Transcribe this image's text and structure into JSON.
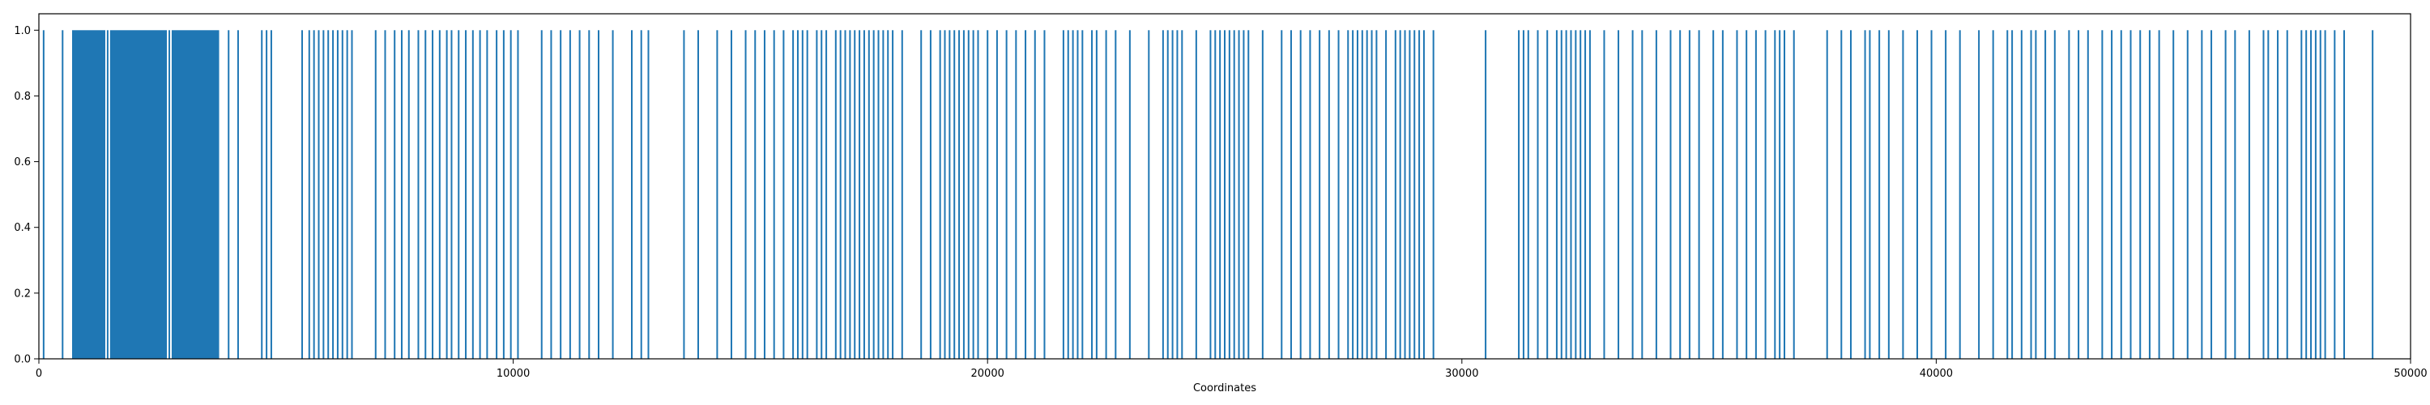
{
  "chart_data": {
    "type": "bar",
    "xlabel": "Coordinates",
    "ylabel": "",
    "title": "",
    "xlim": [
      0,
      50000
    ],
    "ylim": [
      0,
      1.05
    ],
    "x_ticks": [
      0,
      10000,
      20000,
      30000,
      40000,
      50000
    ],
    "x_tick_labels": [
      "0",
      "10000",
      "20000",
      "30000",
      "40000",
      "50000"
    ],
    "y_ticks": [
      0.0,
      0.2,
      0.4,
      0.6,
      0.8,
      1.0
    ],
    "y_tick_labels": [
      "0.0",
      "0.2",
      "0.4",
      "0.6",
      "0.8",
      "1.0"
    ],
    "grid": false,
    "bar_color": "#1f77b4",
    "bar_value": 1,
    "solid_ranges": [
      [
        700,
        1400
      ],
      [
        1500,
        2700
      ],
      [
        2800,
        3800
      ]
    ],
    "positions": [
      100,
      500,
      1450,
      2750,
      4000,
      4200,
      4700,
      4800,
      4900,
      5550,
      5700,
      5800,
      5900,
      6000,
      6100,
      6200,
      6300,
      6400,
      6500,
      6600,
      7100,
      7300,
      7500,
      7650,
      7800,
      8000,
      8150,
      8300,
      8450,
      8600,
      8700,
      8850,
      9000,
      9150,
      9300,
      9450,
      9650,
      9800,
      9950,
      10100,
      10600,
      10800,
      11000,
      11200,
      11400,
      11600,
      11800,
      12100,
      12500,
      12700,
      12850,
      13600,
      13900,
      14300,
      14600,
      14900,
      15100,
      15300,
      15500,
      15700,
      15900,
      16000,
      16100,
      16200,
      16400,
      16500,
      16600,
      16800,
      16900,
      17000,
      17100,
      17200,
      17300,
      17400,
      17500,
      17600,
      17700,
      17800,
      17900,
      18000,
      18200,
      18600,
      18800,
      19000,
      19100,
      19200,
      19300,
      19400,
      19500,
      19600,
      19700,
      19800,
      20000,
      20200,
      20400,
      20600,
      20800,
      21000,
      21200,
      21600,
      21700,
      21800,
      21900,
      22000,
      22200,
      22300,
      22500,
      22700,
      23000,
      23400,
      23700,
      23800,
      23900,
      24000,
      24100,
      24400,
      24700,
      24800,
      24900,
      25000,
      25100,
      25200,
      25300,
      25400,
      25500,
      25800,
      26200,
      26400,
      26600,
      26800,
      27000,
      27200,
      27400,
      27600,
      27700,
      27800,
      27900,
      28000,
      28100,
      28200,
      28400,
      28600,
      28700,
      28800,
      28900,
      29000,
      29100,
      29200,
      29400,
      30500,
      31200,
      31300,
      31400,
      31600,
      31800,
      32000,
      32100,
      32200,
      32300,
      32400,
      32500,
      32600,
      32700,
      33000,
      33300,
      33600,
      33800,
      34100,
      34400,
      34600,
      34800,
      35000,
      35300,
      35500,
      35800,
      36000,
      36200,
      36400,
      36600,
      36700,
      36800,
      37000,
      37700,
      38000,
      38200,
      38500,
      38600,
      38800,
      39000,
      39300,
      39600,
      39900,
      40200,
      40500,
      40900,
      41200,
      41500,
      41600,
      41800,
      42000,
      42100,
      42300,
      42500,
      42800,
      43000,
      43200,
      43500,
      43700,
      43900,
      44100,
      44300,
      44500,
      44700,
      45000,
      45300,
      45600,
      45800,
      46100,
      46300,
      46600,
      46900,
      47000,
      47200,
      47400,
      47700,
      47800,
      47900,
      48000,
      48100,
      48200,
      48400,
      48600,
      49200
    ]
  }
}
